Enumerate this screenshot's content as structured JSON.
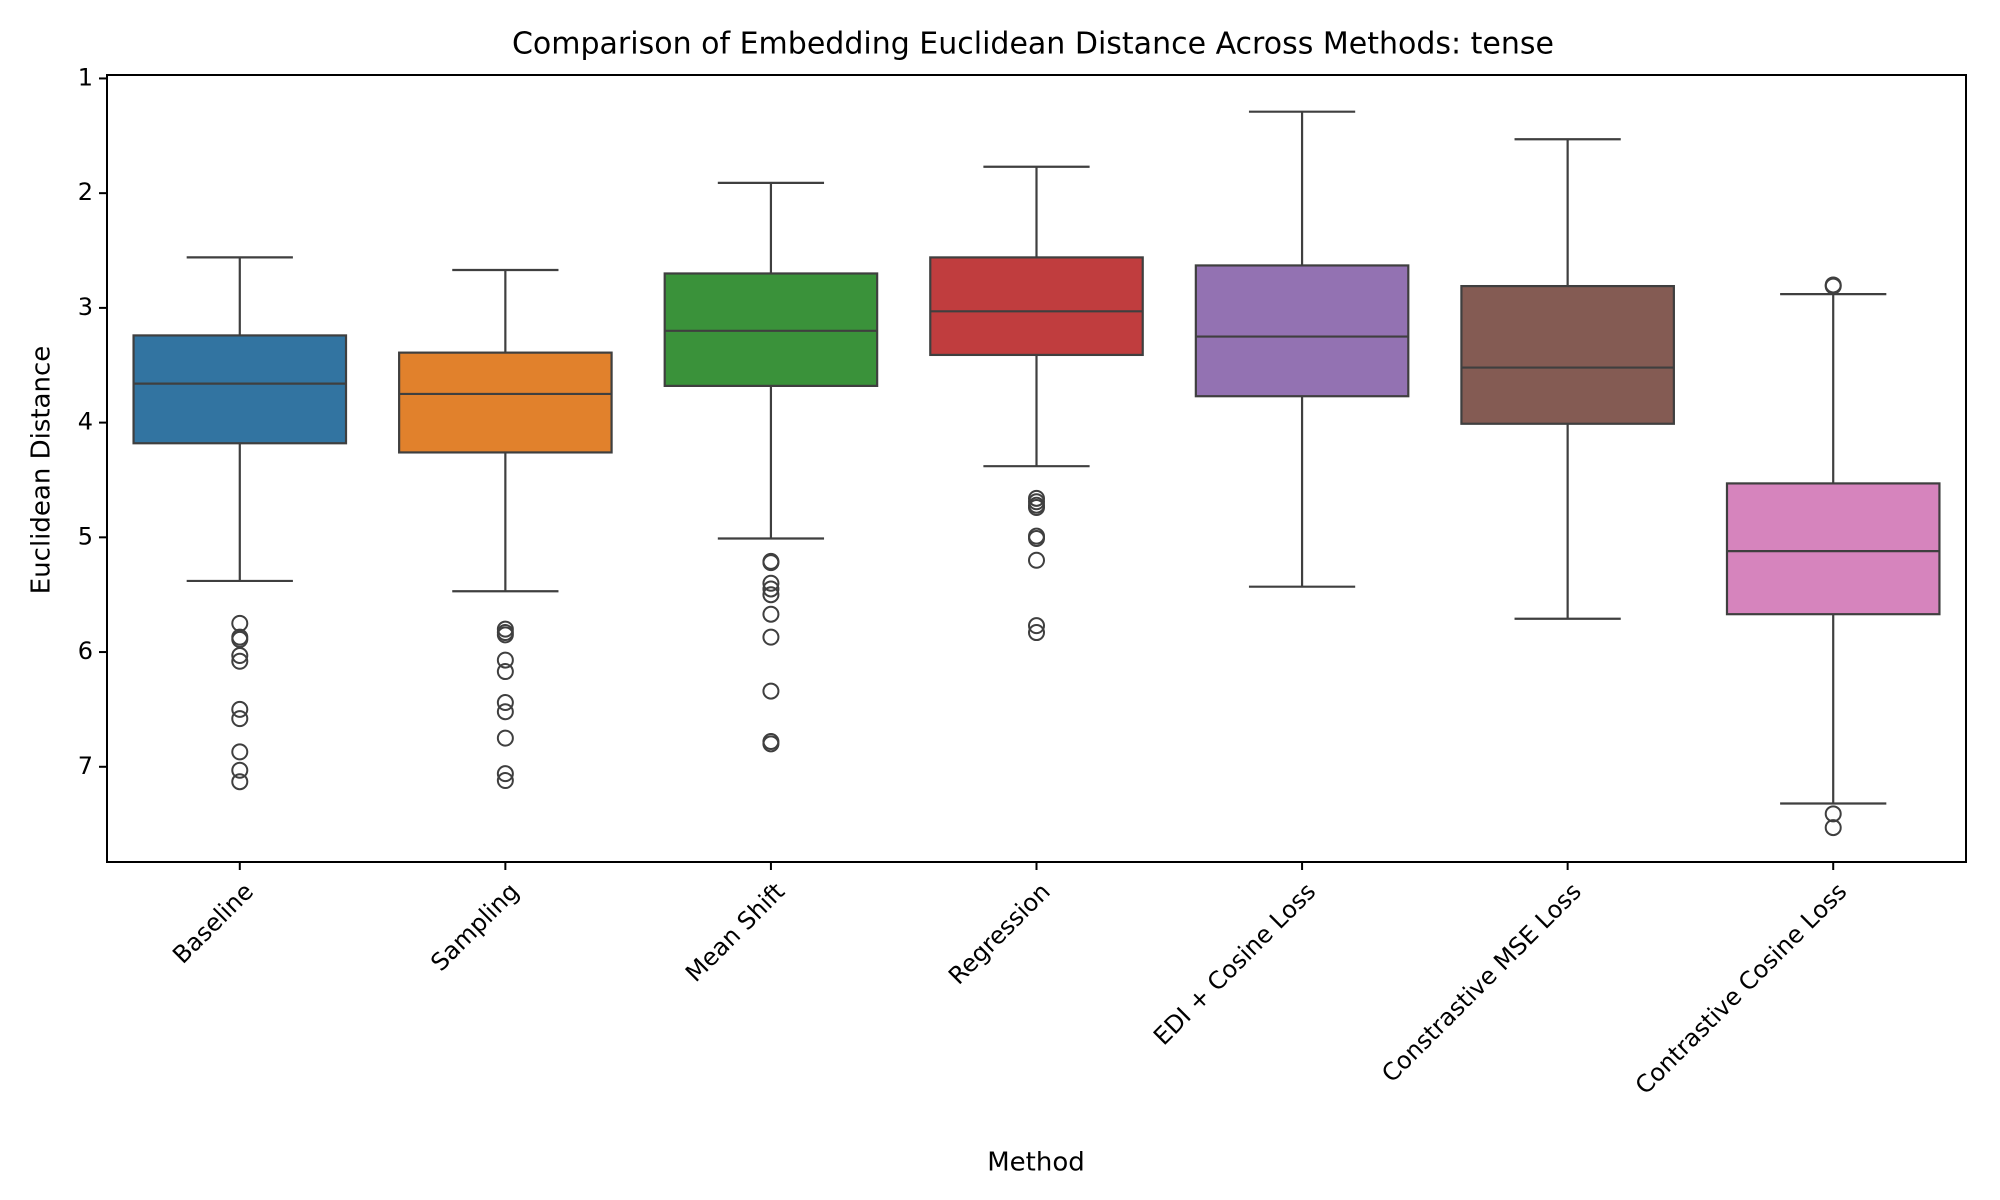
{
  "chart_data": {
    "type": "box",
    "title": "Comparison of Embedding Euclidean Distance Across Methods: tense",
    "xlabel": "Method",
    "ylabel": "Euclidean Distance",
    "y_axis_inverted": true,
    "ylim": [
      7.83,
      0.97
    ],
    "yticks": [
      1,
      2,
      3,
      4,
      5,
      6,
      7
    ],
    "grid": false,
    "legend": "none",
    "categories": [
      "Baseline",
      "Sampling",
      "Mean Shift",
      "Regression",
      "EDI + Cosine Loss",
      "Constrastive MSE Loss",
      "Contrastive Cosine Loss"
    ],
    "series": [
      {
        "category": "Baseline",
        "color": "#3274a1",
        "whisker_low": 2.56,
        "q1": 3.24,
        "median": 3.66,
        "q3": 4.18,
        "whisker_high": 5.38,
        "outliers": [
          5.75,
          5.87,
          5.89,
          6.03,
          6.08,
          6.5,
          6.58,
          6.87,
          7.03,
          7.13
        ]
      },
      {
        "category": "Sampling",
        "color": "#e1812c",
        "whisker_low": 2.67,
        "q1": 3.39,
        "median": 3.75,
        "q3": 4.26,
        "whisker_high": 5.47,
        "outliers": [
          5.8,
          5.83,
          5.85,
          6.07,
          6.17,
          6.44,
          6.52,
          6.75,
          7.06,
          7.12
        ]
      },
      {
        "category": "Mean Shift",
        "color": "#3a923a",
        "whisker_low": 1.91,
        "q1": 2.7,
        "median": 3.2,
        "q3": 3.68,
        "whisker_high": 5.01,
        "outliers": [
          5.21,
          5.22,
          5.4,
          5.45,
          5.5,
          5.67,
          5.87,
          6.34,
          6.78,
          6.8
        ]
      },
      {
        "category": "Regression",
        "color": "#c03d3e",
        "whisker_low": 1.77,
        "q1": 2.56,
        "median": 3.03,
        "q3": 3.41,
        "whisker_high": 4.38,
        "outliers": [
          4.66,
          4.69,
          4.72,
          4.74,
          4.99,
          5.01,
          5.2,
          5.77,
          5.83
        ]
      },
      {
        "category": "EDI + Cosine Loss",
        "color": "#9372b2",
        "whisker_low": 1.29,
        "q1": 2.63,
        "median": 3.25,
        "q3": 3.77,
        "whisker_high": 5.43,
        "outliers": []
      },
      {
        "category": "Constrastive MSE Loss",
        "color": "#845b53",
        "whisker_low": 1.53,
        "q1": 2.81,
        "median": 3.52,
        "q3": 4.01,
        "whisker_high": 5.71,
        "outliers": []
      },
      {
        "category": "Contrastive Cosine Loss",
        "color": "#d684bd",
        "whisker_low": 2.88,
        "q1": 4.53,
        "median": 5.12,
        "q3": 5.67,
        "whisker_high": 7.32,
        "outliers": [
          2.8,
          2.81,
          7.41,
          7.53
        ]
      }
    ]
  }
}
